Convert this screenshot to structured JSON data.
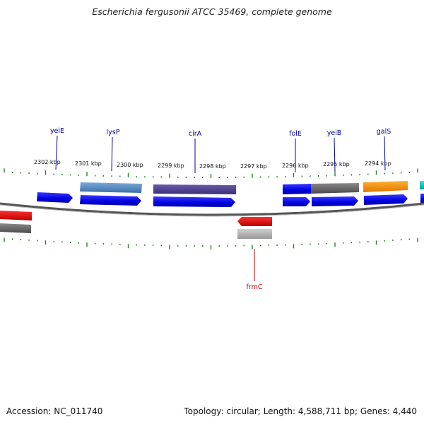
{
  "title": "Escherichia fergusonii ATCC 35469, complete genome",
  "footer": {
    "accession": "Accession: NC_011740",
    "topology": "Topology: circular; Length: 4,588,711 bp; Genes: 4,440"
  },
  "scale_labels": [
    {
      "label": "2302 kbp",
      "kbp": 2302
    },
    {
      "label": "2301 kbp",
      "kbp": 2301
    },
    {
      "label": "2300 kbp",
      "kbp": 2300
    },
    {
      "label": "2299 kbp",
      "kbp": 2299
    },
    {
      "label": "2298 kbp",
      "kbp": 2298
    },
    {
      "label": "2297 kbp",
      "kbp": 2297
    },
    {
      "label": "2296 kbp",
      "kbp": 2296
    },
    {
      "label": "2295 kbp",
      "kbp": 2295
    },
    {
      "label": "2294 kbp",
      "kbp": 2294
    }
  ],
  "colors": {
    "cds": "#0000ee",
    "label_blue": "#0000aa",
    "label_red": "#cc0000",
    "backbone": "#666666",
    "tick": "#2a7d2a"
  },
  "genes_labeled": [
    {
      "name": "yeiE",
      "strand": "top",
      "color": "#0000aa"
    },
    {
      "name": "lysP",
      "strand": "top",
      "color": "#0000aa"
    },
    {
      "name": "cirA",
      "strand": "top",
      "color": "#0000aa"
    },
    {
      "name": "folE",
      "strand": "top",
      "color": "#0000aa"
    },
    {
      "name": "yeiB",
      "strand": "top",
      "color": "#0000aa"
    },
    {
      "name": "galS",
      "strand": "top",
      "color": "#0000aa"
    },
    {
      "name": "frmC",
      "strand": "bottom",
      "color": "#cc0000"
    }
  ]
}
